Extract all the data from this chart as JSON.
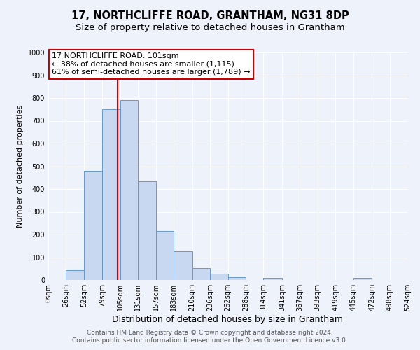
{
  "title": "17, NORTHCLIFFE ROAD, GRANTHAM, NG31 8DP",
  "subtitle": "Size of property relative to detached houses in Grantham",
  "xlabel": "Distribution of detached houses by size in Grantham",
  "ylabel": "Number of detached properties",
  "bin_edges": [
    0,
    26,
    52,
    79,
    105,
    131,
    157,
    183,
    210,
    236,
    262,
    288,
    314,
    341,
    367,
    393,
    419,
    445,
    472,
    498,
    524
  ],
  "bar_heights": [
    0,
    43,
    480,
    750,
    790,
    435,
    215,
    125,
    52,
    27,
    13,
    0,
    8,
    0,
    0,
    0,
    0,
    8,
    0,
    0
  ],
  "bar_color": "#c8d8f0",
  "bar_edge_color": "#6699cc",
  "property_size": 101,
  "vline_color": "#cc0000",
  "annotation_text": "17 NORTHCLIFFE ROAD: 101sqm\n← 38% of detached houses are smaller (1,115)\n61% of semi-detached houses are larger (1,789) →",
  "annotation_box_facecolor": "#ffffff",
  "annotation_box_edgecolor": "#cc0000",
  "ylim": [
    0,
    1000
  ],
  "yticks": [
    0,
    100,
    200,
    300,
    400,
    500,
    600,
    700,
    800,
    900,
    1000
  ],
  "tick_labels": [
    "0sqm",
    "26sqm",
    "52sqm",
    "79sqm",
    "105sqm",
    "131sqm",
    "157sqm",
    "183sqm",
    "210sqm",
    "236sqm",
    "262sqm",
    "288sqm",
    "314sqm",
    "341sqm",
    "367sqm",
    "393sqm",
    "419sqm",
    "445sqm",
    "472sqm",
    "498sqm",
    "524sqm"
  ],
  "footer_line1": "Contains HM Land Registry data © Crown copyright and database right 2024.",
  "footer_line2": "Contains public sector information licensed under the Open Government Licence v3.0.",
  "background_color": "#eef2fb",
  "grid_color": "#ffffff",
  "title_fontsize": 10.5,
  "subtitle_fontsize": 9.5,
  "xlabel_fontsize": 9,
  "ylabel_fontsize": 8,
  "tick_fontsize": 7,
  "annotation_fontsize": 8,
  "footer_fontsize": 6.5
}
